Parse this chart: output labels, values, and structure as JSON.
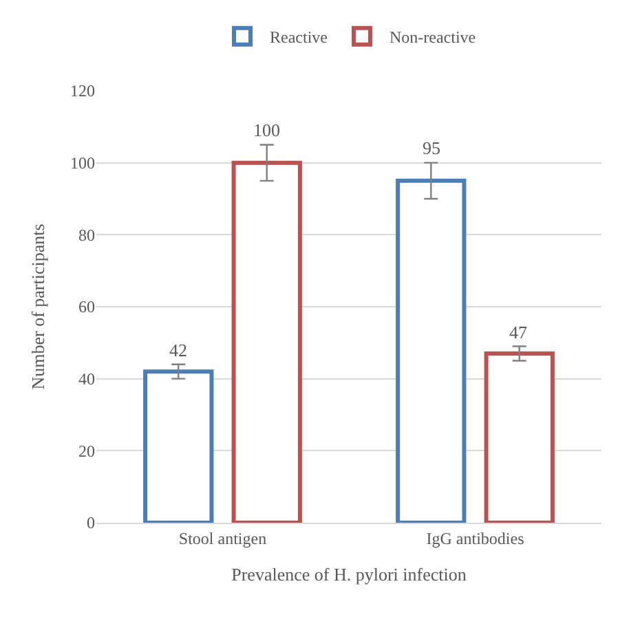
{
  "chart_data": {
    "type": "bar",
    "categories": [
      "Stool antigen",
      "IgG antibodies"
    ],
    "series": [
      {
        "name": "Reactive",
        "color": "#4a7ebb",
        "values": [
          42,
          95
        ],
        "errors": [
          2,
          5
        ]
      },
      {
        "name": "Non-reactive",
        "color": "#c0504d",
        "values": [
          100,
          47
        ],
        "errors": [
          5,
          2
        ]
      }
    ],
    "xlabel": "Prevalence of H. pylori infection",
    "ylabel": "Number of participants",
    "ylim": [
      0,
      120
    ],
    "yticks": [
      0,
      20,
      40,
      60,
      80,
      100,
      120
    ],
    "grid": "y",
    "legend": "top",
    "data_labels": true
  }
}
